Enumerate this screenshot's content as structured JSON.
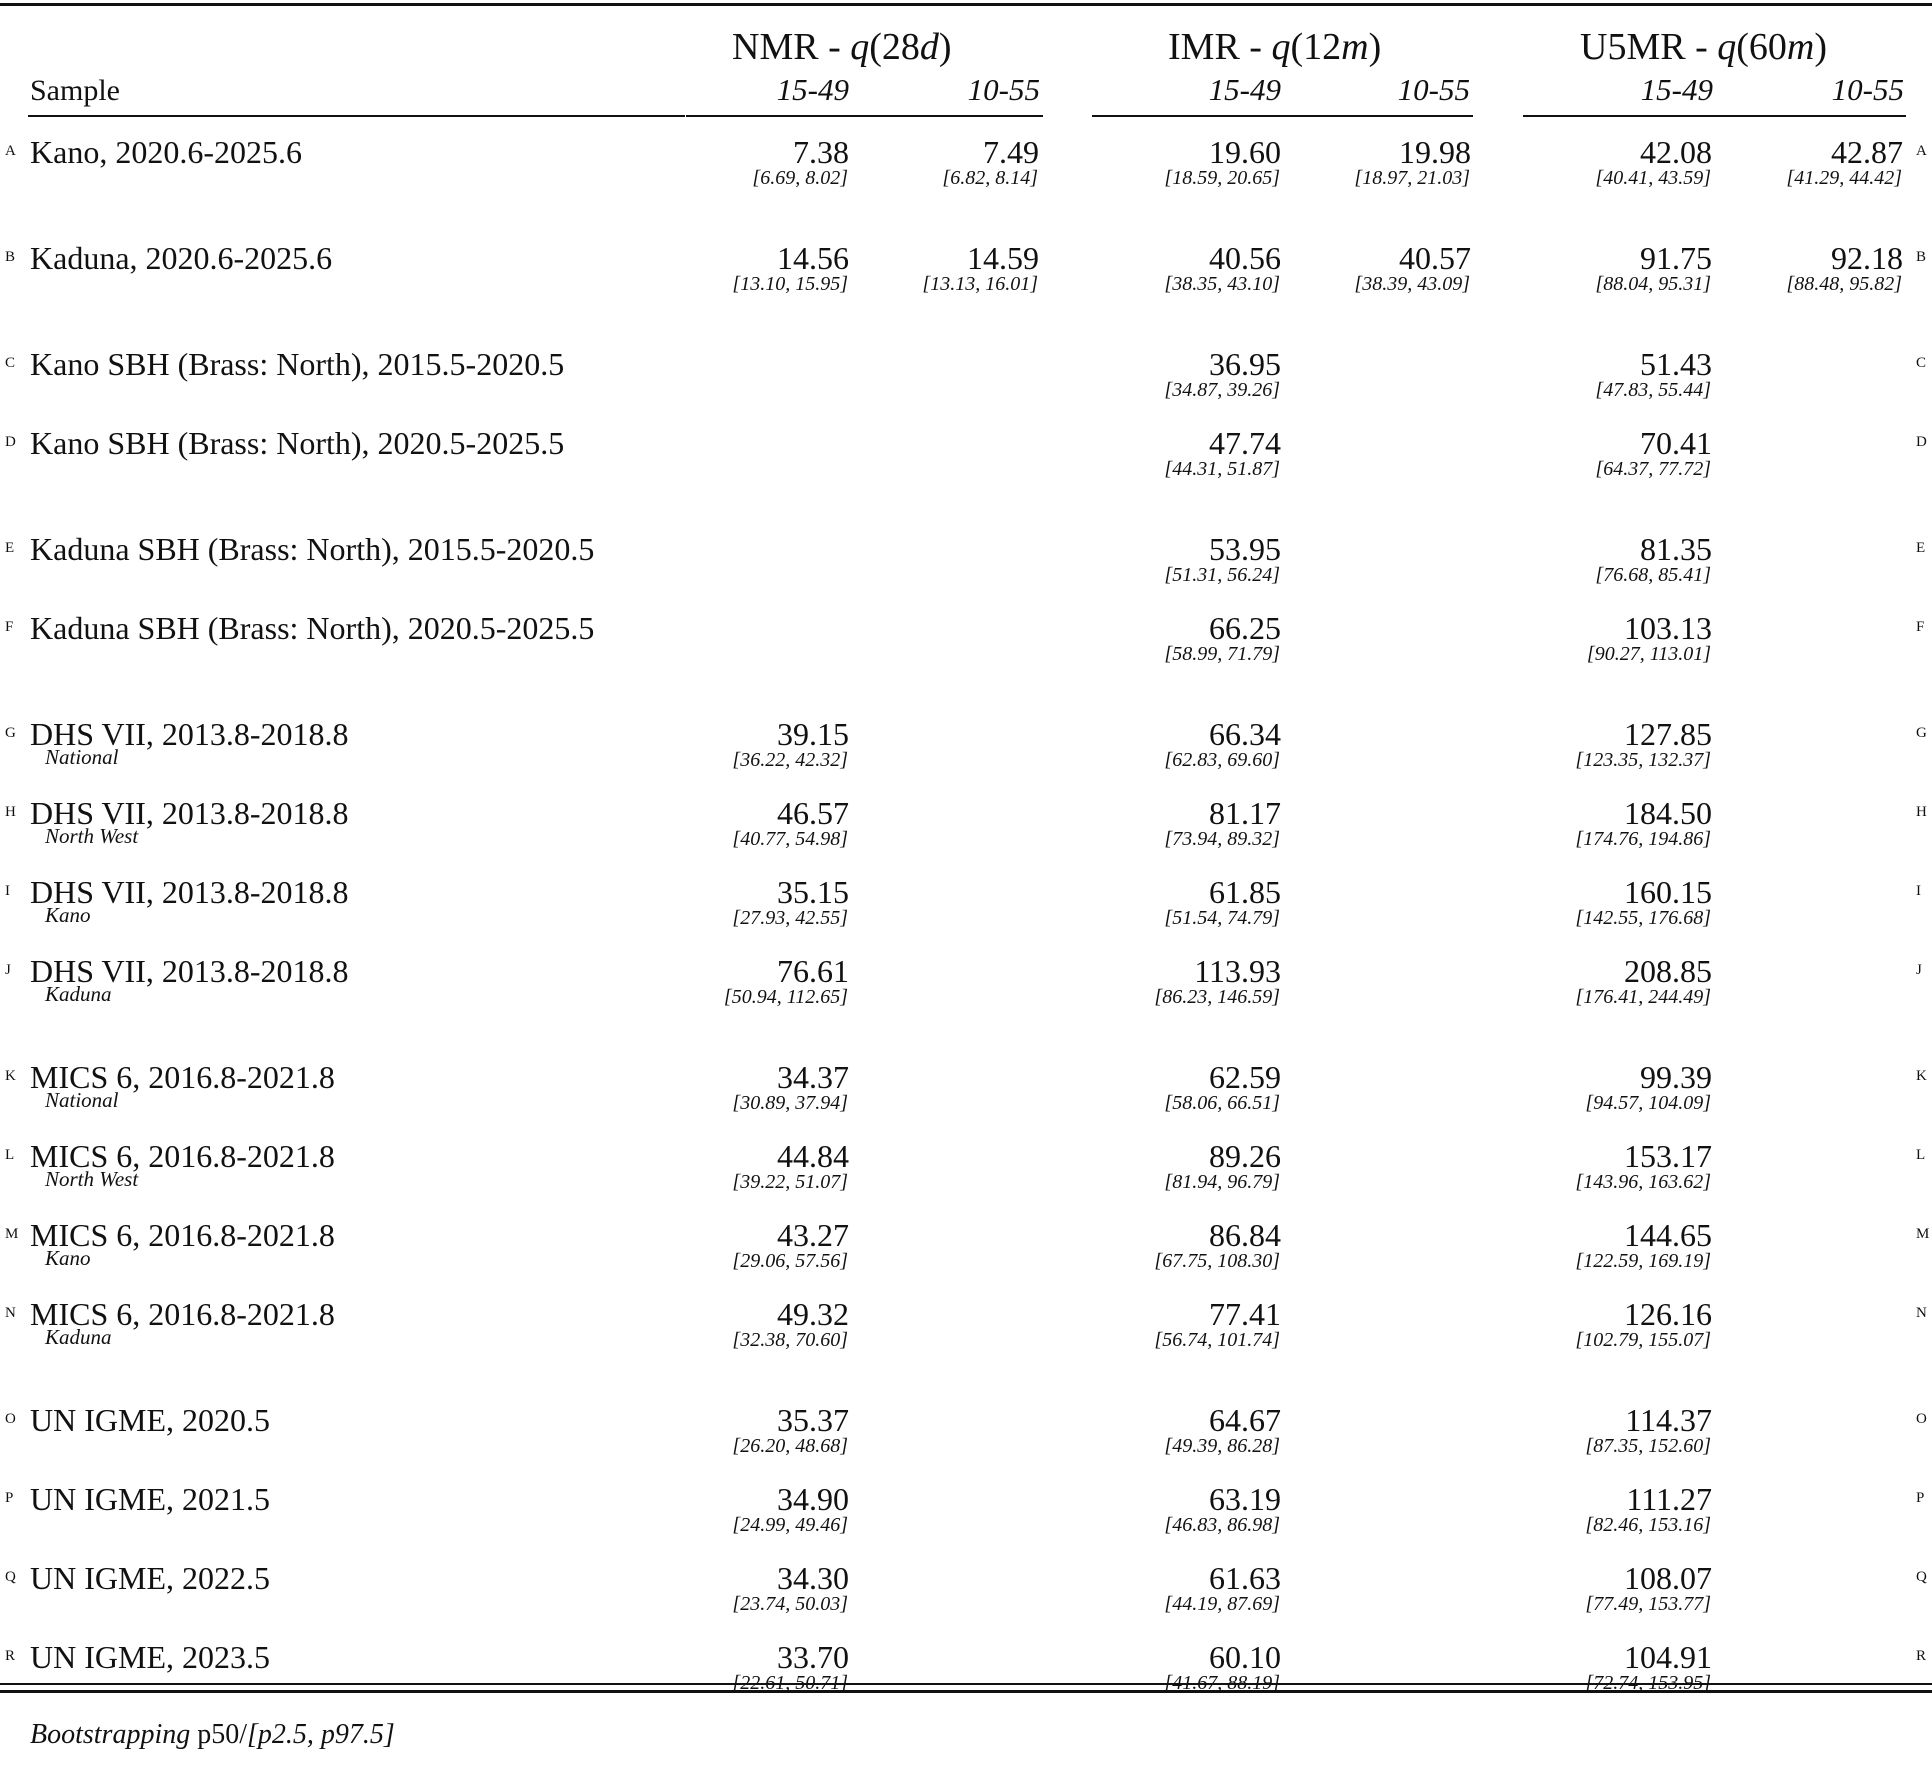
{
  "header": {
    "sample_label": "Sample",
    "groups": [
      {
        "prefix": "NMR - ",
        "q": "q",
        "open": "(28",
        "unit": "d",
        "close": ")"
      },
      {
        "prefix": "IMR - ",
        "q": "q",
        "open": "(12",
        "unit": "m",
        "close": ")"
      },
      {
        "prefix": "U5MR - ",
        "q": "q",
        "open": "(60",
        "unit": "m",
        "close": ")"
      }
    ],
    "sub_a": "15-49",
    "sub_b": "10-55"
  },
  "rows": [
    {
      "letter": "A",
      "label": "Kano, 2020.6-2025.6",
      "sublabel": "",
      "right_letter": "A",
      "cells": [
        {
          "v": "7.38",
          "ci": "[6.69, 8.02]"
        },
        {
          "v": "7.49",
          "ci": "[6.82, 8.14]"
        },
        {
          "v": "19.60",
          "ci": "[18.59, 20.65]"
        },
        {
          "v": "19.98",
          "ci": "[18.97, 21.03]"
        },
        {
          "v": "42.08",
          "ci": "[40.41, 43.59]"
        },
        {
          "v": "42.87",
          "ci": "[41.29, 44.42]"
        }
      ]
    },
    {
      "letter": "B",
      "label": "Kaduna, 2020.6-2025.6",
      "sublabel": "",
      "right_letter": "B",
      "cells": [
        {
          "v": "14.56",
          "ci": "[13.10, 15.95]"
        },
        {
          "v": "14.59",
          "ci": "[13.13, 16.01]"
        },
        {
          "v": "40.56",
          "ci": "[38.35, 43.10]"
        },
        {
          "v": "40.57",
          "ci": "[38.39, 43.09]"
        },
        {
          "v": "91.75",
          "ci": "[88.04, 95.31]"
        },
        {
          "v": "92.18",
          "ci": "[88.48, 95.82]"
        }
      ]
    },
    {
      "letter": "C",
      "label": "Kano SBH (Brass: North), 2015.5-2020.5",
      "sublabel": "",
      "right_letter": "C",
      "cells": [
        {
          "v": "",
          "ci": ""
        },
        {
          "v": "",
          "ci": ""
        },
        {
          "v": "36.95",
          "ci": "[34.87, 39.26]"
        },
        {
          "v": "",
          "ci": ""
        },
        {
          "v": "51.43",
          "ci": "[47.83, 55.44]"
        },
        {
          "v": "",
          "ci": ""
        }
      ]
    },
    {
      "letter": "D",
      "label": "Kano SBH (Brass: North), 2020.5-2025.5",
      "sublabel": "",
      "right_letter": "D",
      "cells": [
        {
          "v": "",
          "ci": ""
        },
        {
          "v": "",
          "ci": ""
        },
        {
          "v": "47.74",
          "ci": "[44.31, 51.87]"
        },
        {
          "v": "",
          "ci": ""
        },
        {
          "v": "70.41",
          "ci": "[64.37, 77.72]"
        },
        {
          "v": "",
          "ci": ""
        }
      ]
    },
    {
      "letter": "E",
      "label": "Kaduna SBH (Brass: North), 2015.5-2020.5",
      "sublabel": "",
      "right_letter": "E",
      "cells": [
        {
          "v": "",
          "ci": ""
        },
        {
          "v": "",
          "ci": ""
        },
        {
          "v": "53.95",
          "ci": "[51.31, 56.24]"
        },
        {
          "v": "",
          "ci": ""
        },
        {
          "v": "81.35",
          "ci": "[76.68, 85.41]"
        },
        {
          "v": "",
          "ci": ""
        }
      ]
    },
    {
      "letter": "F",
      "label": "Kaduna SBH (Brass: North), 2020.5-2025.5",
      "sublabel": "",
      "right_letter": "F",
      "cells": [
        {
          "v": "",
          "ci": ""
        },
        {
          "v": "",
          "ci": ""
        },
        {
          "v": "66.25",
          "ci": "[58.99, 71.79]"
        },
        {
          "v": "",
          "ci": ""
        },
        {
          "v": "103.13",
          "ci": "[90.27, 113.01]"
        },
        {
          "v": "",
          "ci": ""
        }
      ]
    },
    {
      "letter": "G",
      "label": "DHS VII, 2013.8-2018.8",
      "sublabel": "National",
      "right_letter": "G",
      "cells": [
        {
          "v": "39.15",
          "ci": "[36.22, 42.32]"
        },
        {
          "v": "",
          "ci": ""
        },
        {
          "v": "66.34",
          "ci": "[62.83, 69.60]"
        },
        {
          "v": "",
          "ci": ""
        },
        {
          "v": "127.85",
          "ci": "[123.35, 132.37]"
        },
        {
          "v": "",
          "ci": ""
        }
      ]
    },
    {
      "letter": "H",
      "label": "DHS VII, 2013.8-2018.8",
      "sublabel": "North West",
      "right_letter": "H",
      "cells": [
        {
          "v": "46.57",
          "ci": "[40.77, 54.98]"
        },
        {
          "v": "",
          "ci": ""
        },
        {
          "v": "81.17",
          "ci": "[73.94, 89.32]"
        },
        {
          "v": "",
          "ci": ""
        },
        {
          "v": "184.50",
          "ci": "[174.76, 194.86]"
        },
        {
          "v": "",
          "ci": ""
        }
      ]
    },
    {
      "letter": "I",
      "label": "DHS VII, 2013.8-2018.8",
      "sublabel": "Kano",
      "right_letter": "I",
      "cells": [
        {
          "v": "35.15",
          "ci": "[27.93, 42.55]"
        },
        {
          "v": "",
          "ci": ""
        },
        {
          "v": "61.85",
          "ci": "[51.54, 74.79]"
        },
        {
          "v": "",
          "ci": ""
        },
        {
          "v": "160.15",
          "ci": "[142.55, 176.68]"
        },
        {
          "v": "",
          "ci": ""
        }
      ]
    },
    {
      "letter": "J",
      "label": "DHS VII, 2013.8-2018.8",
      "sublabel": "Kaduna",
      "right_letter": "J",
      "cells": [
        {
          "v": "76.61",
          "ci": "[50.94, 112.65]"
        },
        {
          "v": "",
          "ci": ""
        },
        {
          "v": "113.93",
          "ci": "[86.23, 146.59]"
        },
        {
          "v": "",
          "ci": ""
        },
        {
          "v": "208.85",
          "ci": "[176.41, 244.49]"
        },
        {
          "v": "",
          "ci": ""
        }
      ]
    },
    {
      "letter": "K",
      "label": "MICS 6, 2016.8-2021.8",
      "sublabel": "National",
      "right_letter": "K",
      "cells": [
        {
          "v": "34.37",
          "ci": "[30.89, 37.94]"
        },
        {
          "v": "",
          "ci": ""
        },
        {
          "v": "62.59",
          "ci": "[58.06, 66.51]"
        },
        {
          "v": "",
          "ci": ""
        },
        {
          "v": "99.39",
          "ci": "[94.57, 104.09]"
        },
        {
          "v": "",
          "ci": ""
        }
      ]
    },
    {
      "letter": "L",
      "label": "MICS 6, 2016.8-2021.8",
      "sublabel": "North West",
      "right_letter": "L",
      "cells": [
        {
          "v": "44.84",
          "ci": "[39.22, 51.07]"
        },
        {
          "v": "",
          "ci": ""
        },
        {
          "v": "89.26",
          "ci": "[81.94, 96.79]"
        },
        {
          "v": "",
          "ci": ""
        },
        {
          "v": "153.17",
          "ci": "[143.96, 163.62]"
        },
        {
          "v": "",
          "ci": ""
        }
      ]
    },
    {
      "letter": "M",
      "label": "MICS 6, 2016.8-2021.8",
      "sublabel": "Kano",
      "right_letter": "M",
      "cells": [
        {
          "v": "43.27",
          "ci": "[29.06, 57.56]"
        },
        {
          "v": "",
          "ci": ""
        },
        {
          "v": "86.84",
          "ci": "[67.75, 108.30]"
        },
        {
          "v": "",
          "ci": ""
        },
        {
          "v": "144.65",
          "ci": "[122.59, 169.19]"
        },
        {
          "v": "",
          "ci": ""
        }
      ]
    },
    {
      "letter": "N",
      "label": "MICS 6, 2016.8-2021.8",
      "sublabel": "Kaduna",
      "right_letter": "N",
      "cells": [
        {
          "v": "49.32",
          "ci": "[32.38, 70.60]"
        },
        {
          "v": "",
          "ci": ""
        },
        {
          "v": "77.41",
          "ci": "[56.74, 101.74]"
        },
        {
          "v": "",
          "ci": ""
        },
        {
          "v": "126.16",
          "ci": "[102.79, 155.07]"
        },
        {
          "v": "",
          "ci": ""
        }
      ]
    },
    {
      "letter": "O",
      "label": "UN IGME, 2020.5",
      "sublabel": "",
      "right_letter": "O",
      "cells": [
        {
          "v": "35.37",
          "ci": "[26.20, 48.68]"
        },
        {
          "v": "",
          "ci": ""
        },
        {
          "v": "64.67",
          "ci": "[49.39, 86.28]"
        },
        {
          "v": "",
          "ci": ""
        },
        {
          "v": "114.37",
          "ci": "[87.35, 152.60]"
        },
        {
          "v": "",
          "ci": ""
        }
      ]
    },
    {
      "letter": "P",
      "label": "UN IGME, 2021.5",
      "sublabel": "",
      "right_letter": "P",
      "cells": [
        {
          "v": "34.90",
          "ci": "[24.99, 49.46]"
        },
        {
          "v": "",
          "ci": ""
        },
        {
          "v": "63.19",
          "ci": "[46.83, 86.98]"
        },
        {
          "v": "",
          "ci": ""
        },
        {
          "v": "111.27",
          "ci": "[82.46, 153.16]"
        },
        {
          "v": "",
          "ci": ""
        }
      ]
    },
    {
      "letter": "Q",
      "label": "UN IGME, 2022.5",
      "sublabel": "",
      "right_letter": "Q",
      "cells": [
        {
          "v": "34.30",
          "ci": "[23.74, 50.03]"
        },
        {
          "v": "",
          "ci": ""
        },
        {
          "v": "61.63",
          "ci": "[44.19, 87.69]"
        },
        {
          "v": "",
          "ci": ""
        },
        {
          "v": "108.07",
          "ci": "[77.49, 153.77]"
        },
        {
          "v": "",
          "ci": ""
        }
      ]
    },
    {
      "letter": "R",
      "label": "UN IGME, 2023.5",
      "sublabel": "",
      "right_letter": "R",
      "cells": [
        {
          "v": "33.70",
          "ci": "[22.61, 50.71]"
        },
        {
          "v": "",
          "ci": ""
        },
        {
          "v": "60.10",
          "ci": "[41.67, 88.19]"
        },
        {
          "v": "",
          "ci": ""
        },
        {
          "v": "104.91",
          "ci": "[72.74, 153.95]"
        },
        {
          "v": "",
          "ci": ""
        }
      ]
    }
  ],
  "footer": {
    "method": "Bootstrapping",
    "stat": " p50/",
    "range": "[p2.5, p97.5]"
  }
}
